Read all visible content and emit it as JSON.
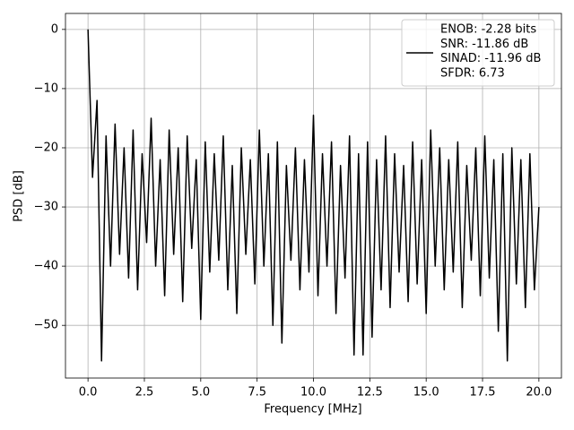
{
  "chart_data": {
    "type": "line",
    "xlabel": "Frequency [MHz]",
    "ylabel": "PSD [dB]",
    "x": [
      0,
      0.2,
      0.4,
      0.6,
      0.8,
      1.0,
      1.2,
      1.4,
      1.6,
      1.8,
      2.0,
      2.2,
      2.4,
      2.6,
      2.8,
      3.0,
      3.2,
      3.4,
      3.6,
      3.8,
      4.0,
      4.2,
      4.4,
      4.6,
      4.8,
      5.0,
      5.2,
      5.4,
      5.6,
      5.8,
      6.0,
      6.2,
      6.4,
      6.6,
      6.8,
      7.0,
      7.2,
      7.4,
      7.6,
      7.8,
      8.0,
      8.2,
      8.4,
      8.6,
      8.8,
      9.0,
      9.2,
      9.4,
      9.6,
      9.8,
      10.0,
      10.2,
      10.4,
      10.6,
      10.8,
      11.0,
      11.2,
      11.4,
      11.6,
      11.8,
      12.0,
      12.2,
      12.4,
      12.6,
      12.8,
      13.0,
      13.2,
      13.4,
      13.6,
      13.8,
      14.0,
      14.2,
      14.4,
      14.6,
      14.8,
      15.0,
      15.2,
      15.4,
      15.6,
      15.8,
      16.0,
      16.2,
      16.4,
      16.6,
      16.8,
      17.0,
      17.2,
      17.4,
      17.6,
      17.8,
      18.0,
      18.2,
      18.4,
      18.6,
      18.8,
      19.0,
      19.2,
      19.4,
      19.6,
      19.8,
      20.0
    ],
    "series": [
      {
        "name": [
          "ENOB: -2.28 bits",
          "SNR: -11.86 dB",
          "SINAD: -11.96 dB",
          "SFDR: 6.73"
        ],
        "color": "#000000",
        "values": [
          0,
          -25,
          -12,
          -56,
          -18,
          -40,
          -16,
          -38,
          -20,
          -42,
          -17,
          -44,
          -21,
          -36,
          -15,
          -40,
          -22,
          -45,
          -17,
          -38,
          -20,
          -46,
          -18,
          -37,
          -22,
          -49,
          -19,
          -41,
          -21,
          -39,
          -18,
          -44,
          -23,
          -48,
          -20,
          -38,
          -22,
          -43,
          -17,
          -40,
          -21,
          -50,
          -19,
          -53,
          -23,
          -39,
          -20,
          -44,
          -22,
          -41,
          -14.5,
          -45,
          -21,
          -40,
          -19,
          -48,
          -23,
          -42,
          -18,
          -55,
          -21,
          -55,
          -19,
          -52,
          -22,
          -44,
          -18,
          -47,
          -21,
          -41,
          -23,
          -46,
          -19,
          -43,
          -22,
          -48,
          -17,
          -40,
          -20,
          -44,
          -22,
          -41,
          -19,
          -47,
          -23,
          -39,
          -20,
          -45,
          -18,
          -42,
          -22,
          -51,
          -21,
          -56,
          -20,
          -43,
          -22,
          -47,
          -21,
          -44,
          -30
        ]
      }
    ],
    "xlim": [
      -1,
      21
    ],
    "ylim": [
      -58.9,
      2.7
    ],
    "xticks": [
      {
        "value": 0,
        "label": "0.0"
      },
      {
        "value": 2.5,
        "label": "2.5"
      },
      {
        "value": 5,
        "label": "5.0"
      },
      {
        "value": 7.5,
        "label": "7.5"
      },
      {
        "value": 10,
        "label": "10.0"
      },
      {
        "value": 12.5,
        "label": "12.5"
      },
      {
        "value": 15,
        "label": "15.0"
      },
      {
        "value": 17.5,
        "label": "17.5"
      },
      {
        "value": 20,
        "label": "20.0"
      }
    ],
    "yticks": [
      0,
      {
        "value": -10,
        "label": "−10"
      },
      {
        "value": -20,
        "label": "−20"
      },
      {
        "value": -30,
        "label": "−30"
      },
      {
        "value": -40,
        "label": "−40"
      },
      {
        "value": -50,
        "label": "−50"
      }
    ],
    "grid": true,
    "legend": "upper right"
  }
}
